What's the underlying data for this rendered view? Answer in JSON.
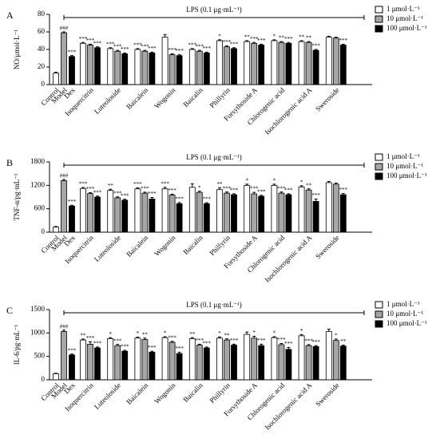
{
  "chart_data": [
    {
      "type": "bar",
      "panel": "A",
      "ylabel": "NO/μmol·L⁻¹",
      "annotation": "LPS (0.1 μg·mL⁻¹)",
      "categories": [
        "Control",
        "Model",
        "Dex",
        "Isoquercitrin",
        "Luteoloside",
        "Baicalein",
        "Wogonin",
        "Baicalin",
        "Phillyrin",
        "Forsythoside A",
        "Chlorogenic acid",
        "Isochlorogenic acid A",
        "Sweroside"
      ],
      "ylim": [
        0,
        80
      ],
      "yticks": [
        0,
        20,
        40,
        60,
        80
      ],
      "legend": "right",
      "series": [
        {
          "name": "1 μmol·L⁻¹",
          "color": "#ffffff",
          "values": [
            13,
            null,
            null,
            47,
            41,
            40,
            54,
            40,
            50,
            49,
            50,
            49,
            54
          ],
          "errors": [
            1,
            null,
            null,
            1,
            1,
            1,
            3,
            1,
            1,
            1,
            1,
            1,
            1
          ],
          "significance": [
            null,
            null,
            null,
            "***",
            "***",
            "***",
            null,
            "***",
            "*",
            "**",
            "*",
            "**",
            null
          ]
        },
        {
          "name": "10 μmol·L⁻¹",
          "color": "#a6a6a6",
          "values": [
            null,
            59,
            null,
            45,
            38,
            38,
            34,
            38,
            43,
            47,
            48,
            48,
            53
          ],
          "errors": [
            null,
            1,
            null,
            1,
            1,
            1,
            1,
            1,
            1,
            1,
            1,
            1,
            1
          ],
          "significance": [
            null,
            "###",
            null,
            "***",
            "***",
            "***",
            "***",
            "***",
            "***",
            "***",
            "**",
            "**",
            null
          ]
        },
        {
          "name": "100 μmol·L⁻¹",
          "color": "#000000",
          "values": [
            null,
            null,
            32,
            42,
            35,
            36,
            33,
            36,
            41,
            45,
            47,
            39,
            45
          ],
          "errors": [
            null,
            null,
            1,
            1,
            1,
            1,
            1,
            1,
            1,
            1,
            1,
            1,
            1
          ],
          "significance": [
            null,
            null,
            "***",
            "***",
            "***",
            "***",
            "***",
            "***",
            "***",
            "***",
            "***",
            "***",
            "***"
          ]
        }
      ]
    },
    {
      "type": "bar",
      "panel": "B",
      "ylabel": "TNF-α/pg·mL⁻¹",
      "annotation": "LPS (0.1 μg·mL⁻¹)",
      "categories": [
        "Control",
        "Model",
        "Dex",
        "Isoquercitrin",
        "Luteoloside",
        "Baicalein",
        "Wogonin",
        "Baicalin",
        "Phillyrin",
        "Forsythoside A",
        "Chlorogenic acid",
        "Isochlorogenic acid A",
        "Sweroside"
      ],
      "ylim": [
        0,
        1800
      ],
      "yticks": [
        0,
        600,
        1200,
        1800
      ],
      "legend": "right",
      "series": [
        {
          "name": "1 μmol·L⁻¹",
          "color": "#ffffff",
          "values": [
            130,
            null,
            null,
            1120,
            1070,
            1110,
            1110,
            1150,
            1090,
            1200,
            1200,
            1160,
            1270
          ],
          "errors": [
            15,
            null,
            null,
            25,
            30,
            25,
            40,
            90,
            50,
            30,
            30,
            30,
            30
          ],
          "significance": [
            null,
            null,
            null,
            "***",
            "**",
            "***",
            "***",
            null,
            "**",
            "*",
            "*",
            "*",
            null
          ]
        },
        {
          "name": "10 μmol·L⁻¹",
          "color": "#a6a6a6",
          "values": [
            null,
            1320,
            null,
            990,
            880,
            1000,
            950,
            1020,
            1000,
            980,
            1000,
            1080,
            1230
          ],
          "errors": [
            null,
            30,
            null,
            25,
            25,
            25,
            25,
            30,
            30,
            40,
            30,
            30,
            30
          ],
          "significance": [
            null,
            "###",
            null,
            "***",
            "***",
            "***",
            "***",
            "*",
            "***",
            "***",
            "***",
            "**",
            null
          ]
        },
        {
          "name": "100 μmol·L⁻¹",
          "color": "#000000",
          "values": [
            null,
            null,
            670,
            900,
            820,
            850,
            730,
            730,
            960,
            920,
            960,
            790,
            960
          ],
          "errors": [
            null,
            null,
            20,
            25,
            25,
            40,
            30,
            25,
            25,
            25,
            25,
            60,
            30
          ],
          "significance": [
            null,
            null,
            "***",
            "***",
            "***",
            "***",
            "***",
            "***",
            "***",
            "***",
            "***",
            "***",
            "***"
          ]
        }
      ]
    },
    {
      "type": "bar",
      "panel": "C",
      "ylabel": "IL-6/pg·mL⁻¹",
      "annotation": "LPS (0.1 μg·mL⁻¹)",
      "categories": [
        "Control",
        "Model",
        "Dex",
        "Isoquercitrin",
        "Luteoloside",
        "Baicalein",
        "Wogonin",
        "Baicalin",
        "Phillyrin",
        "Forsythoside A",
        "Chlorogenic acid",
        "Isochlorogenic acid A",
        "Sweroside"
      ],
      "ylim": [
        0,
        1500
      ],
      "yticks": [
        0,
        500,
        1000,
        1500
      ],
      "legend": "right",
      "series": [
        {
          "name": "1 μmol·L⁻¹",
          "color": "#ffffff",
          "values": [
            130,
            null,
            null,
            850,
            880,
            890,
            900,
            880,
            890,
            970,
            900,
            940,
            1030
          ],
          "errors": [
            10,
            null,
            null,
            20,
            20,
            20,
            20,
            20,
            25,
            50,
            20,
            25,
            50
          ],
          "significance": [
            null,
            null,
            null,
            "**",
            "*",
            "*",
            "*",
            "**",
            "*",
            null,
            "*",
            "*",
            null
          ]
        },
        {
          "name": "10 μmol·L⁻¹",
          "color": "#a6a6a6",
          "values": [
            null,
            1030,
            null,
            760,
            730,
            860,
            800,
            740,
            850,
            890,
            750,
            730,
            840
          ],
          "errors": [
            null,
            30,
            null,
            50,
            25,
            30,
            20,
            20,
            25,
            40,
            25,
            20,
            30
          ],
          "significance": [
            null,
            "###",
            null,
            "***",
            "***",
            "**",
            "***",
            "***",
            "**",
            "*",
            "***",
            "***",
            "*"
          ]
        },
        {
          "name": "100 μmol·L⁻¹",
          "color": "#000000",
          "values": [
            null,
            null,
            530,
            680,
            610,
            590,
            560,
            680,
            740,
            730,
            650,
            710,
            720
          ],
          "errors": [
            null,
            null,
            20,
            20,
            20,
            20,
            30,
            20,
            20,
            30,
            40,
            20,
            20
          ],
          "significance": [
            null,
            null,
            "***",
            "***",
            "***",
            "***",
            "***",
            "***",
            "***",
            "***",
            "***",
            "***",
            "**"
          ]
        }
      ]
    }
  ]
}
